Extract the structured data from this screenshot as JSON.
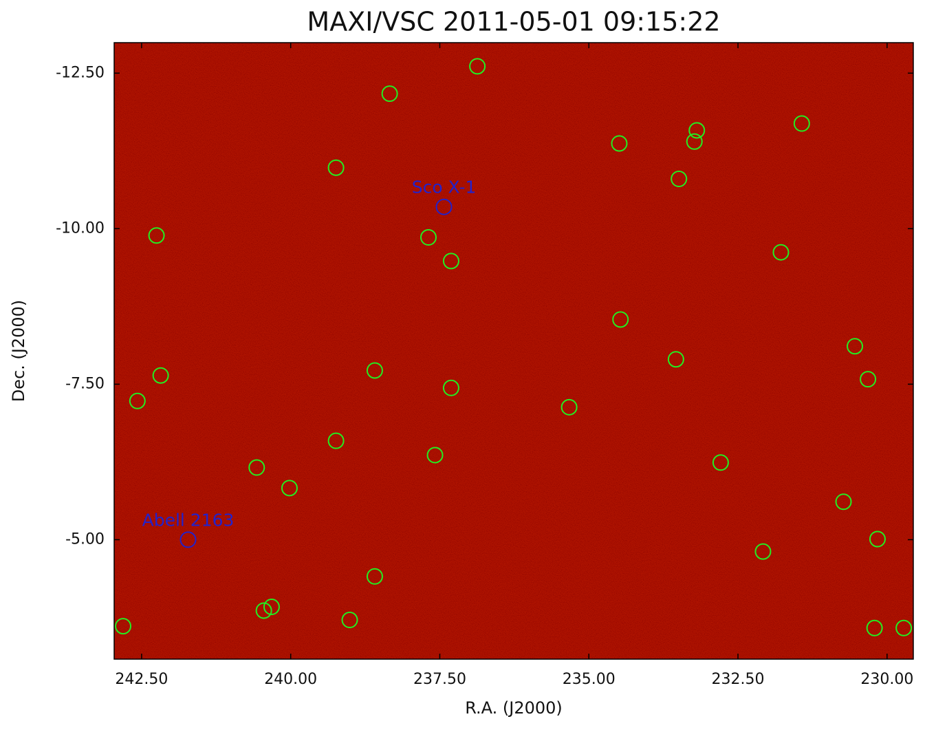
{
  "chart_data": {
    "type": "scatter",
    "title": "MAXI/VSC 2011-05-01 09:15:22",
    "x_label": "R.A. (J2000)",
    "y_label": "Dec. (J2000)",
    "xlim": [
      242.96,
      229.56
    ],
    "ylim": [
      -3.08,
      -12.99
    ],
    "xticks": [
      {
        "value": 242.5,
        "label": "242.50"
      },
      {
        "value": 240,
        "label": "240.00"
      },
      {
        "value": 237.5,
        "label": "237.50"
      },
      {
        "value": 235,
        "label": "235.00"
      },
      {
        "value": 232.5,
        "label": "232.50"
      },
      {
        "value": 230,
        "label": "230.00"
      }
    ],
    "yticks": [
      {
        "value": -12.5,
        "label": "-12.50"
      },
      {
        "value": -10,
        "label": "-10.00"
      },
      {
        "value": -7.5,
        "label": "-7.50"
      },
      {
        "value": -5,
        "label": "-5.00"
      }
    ],
    "sources": {
      "color": "#22ee22",
      "x": [
        236.87,
        238.34,
        239.24,
        242.25,
        237.69,
        237.31,
        234.49,
        233.19,
        233.23,
        233.49,
        231.43,
        231.78,
        234.47,
        233.54,
        230.54,
        230.32,
        242.18,
        242.57,
        238.59,
        237.31,
        235.33,
        239.24,
        237.58,
        240.57,
        240.02,
        232.79,
        230.73,
        230.16,
        232.08,
        238.59,
        240.45,
        240.32,
        239.01,
        242.81,
        230.21,
        229.72
      ],
      "y": [
        -12.61,
        -12.17,
        -10.98,
        -9.89,
        -9.86,
        -9.48,
        -11.37,
        -11.58,
        -11.4,
        -10.8,
        -11.69,
        -9.62,
        -8.54,
        -7.9,
        -8.11,
        -7.58,
        -7.64,
        -7.23,
        -7.72,
        -7.44,
        -7.13,
        -6.59,
        -6.36,
        -6.16,
        -5.83,
        -6.24,
        -5.61,
        -5.01,
        -4.81,
        -4.41,
        -3.86,
        -3.92,
        -3.71,
        -3.61,
        -3.58,
        -3.58
      ]
    },
    "annotations": [
      {
        "text": "Sco X-1",
        "x": 237.43,
        "y": -10.35,
        "color": "#2222cc"
      },
      {
        "text": "Abell 2163",
        "x": 241.72,
        "y": -5.0,
        "color": "#2222cc"
      }
    ]
  }
}
